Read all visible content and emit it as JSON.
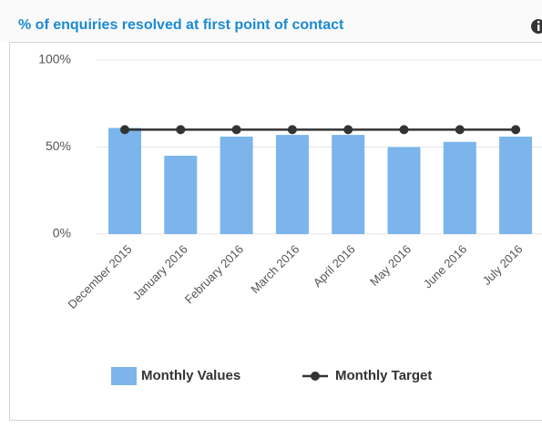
{
  "chart_data": {
    "type": "bar",
    "title": "% of enquiries resolved at first point of contact",
    "categories": [
      "December 2015",
      "January 2016",
      "February 2016",
      "March 2016",
      "April 2016",
      "May 2016",
      "June 2016",
      "July 2016"
    ],
    "series": [
      {
        "name": "Monthly Values",
        "color": "#7cb5ec",
        "type": "bar",
        "values": [
          61,
          45,
          56,
          57,
          57,
          50,
          53,
          56
        ]
      },
      {
        "name": "Monthly Target",
        "color": "#333333",
        "type": "line",
        "values": [
          60,
          60,
          60,
          60,
          60,
          60,
          60,
          60
        ]
      }
    ],
    "ylim": [
      0,
      100
    ],
    "yticks": [
      {
        "value": 0,
        "label": "0%"
      },
      {
        "value": 50,
        "label": "50%"
      },
      {
        "value": 100,
        "label": "100%"
      }
    ],
    "grid": true,
    "legend": "bottom"
  }
}
